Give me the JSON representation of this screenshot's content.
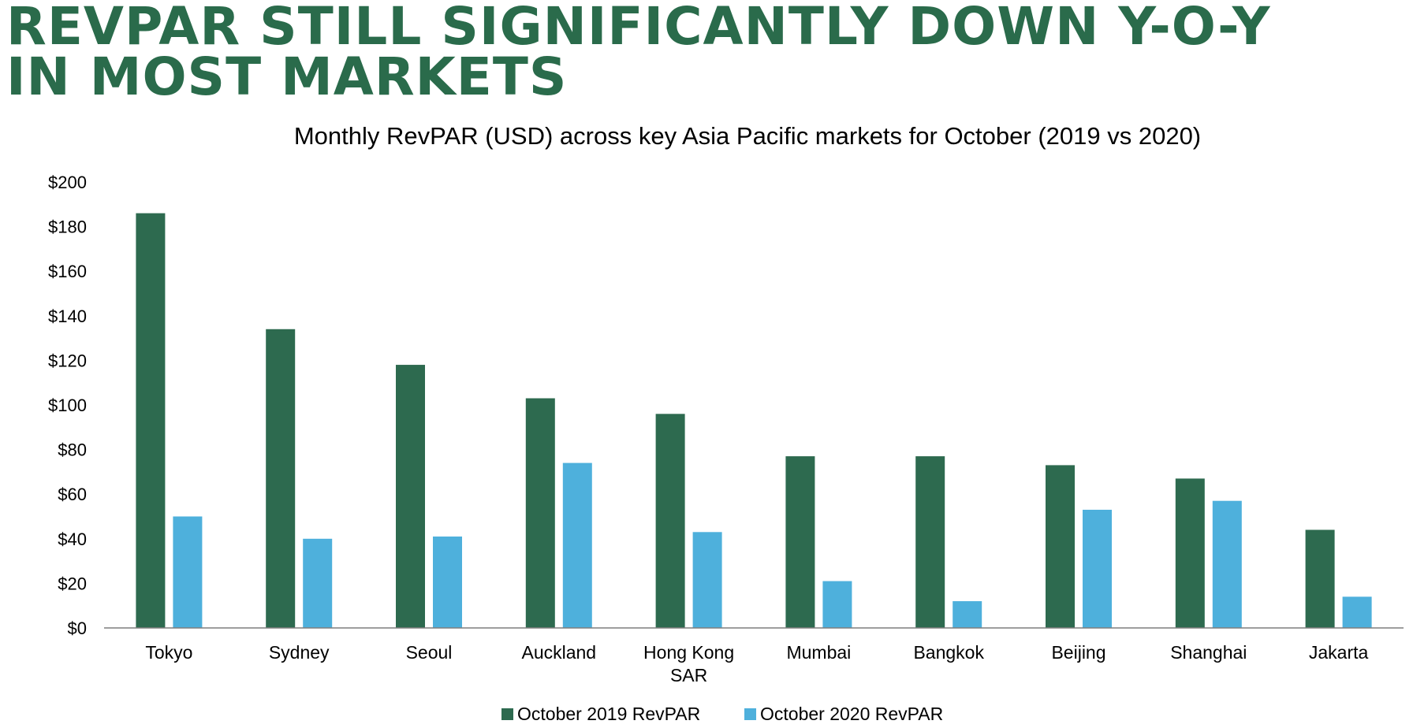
{
  "headline": "REVPAR STILL SIGNIFICANTLY DOWN Y-O-Y IN MOST MARKETS",
  "colors": {
    "headline": "#2a6b4b",
    "series_2019": "#2d6a4f",
    "series_2020": "#4eb0dc",
    "axis": "#7f7f7f"
  },
  "chart_data": {
    "type": "bar",
    "title": "Monthly RevPAR (USD) across key Asia Pacific markets for October (2019 vs 2020)",
    "xlabel": "",
    "ylabel": "",
    "ylim": [
      0,
      200
    ],
    "yticks": [
      0,
      20,
      40,
      60,
      80,
      100,
      120,
      140,
      160,
      180,
      200
    ],
    "ytick_labels": [
      "$0",
      "$20",
      "$40",
      "$60",
      "$80",
      "$100",
      "$120",
      "$140",
      "$160",
      "$180",
      "$200"
    ],
    "grid": false,
    "legend_position": "bottom",
    "categories": [
      [
        "Tokyo"
      ],
      [
        "Sydney"
      ],
      [
        "Seoul"
      ],
      [
        "Auckland"
      ],
      [
        "Hong Kong",
        "SAR"
      ],
      [
        "Mumbai"
      ],
      [
        "Bangkok"
      ],
      [
        "Beijing"
      ],
      [
        "Shanghai"
      ],
      [
        "Jakarta"
      ]
    ],
    "series": [
      {
        "name": "October 2019 RevPAR",
        "values": [
          186,
          134,
          118,
          103,
          96,
          77,
          77,
          73,
          67,
          44
        ]
      },
      {
        "name": "October 2020 RevPAR",
        "values": [
          50,
          40,
          41,
          74,
          43,
          21,
          12,
          53,
          57,
          14
        ]
      }
    ]
  }
}
